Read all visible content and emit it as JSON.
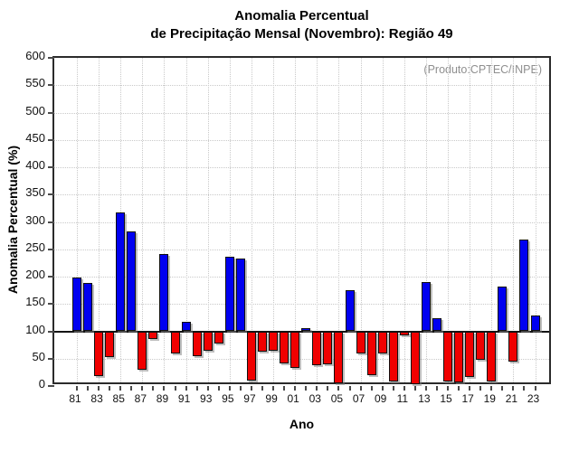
{
  "title": {
    "line1": "Anomalia Percentual",
    "line2": "de Precipitação Mensal (Novembro): Região 49"
  },
  "source_label": "(Produto:CPTEC/INPE)",
  "axes": {
    "x_title": "Ano",
    "y_title": "Anomalia Percentual (%)"
  },
  "chart_data": {
    "type": "bar",
    "title": "Anomalia Percentual de Precipitação Mensal (Novembro): Região 49",
    "xlabel": "Ano",
    "ylabel": "Anomalia Percentual (%)",
    "ylim": [
      0,
      600
    ],
    "ytick_step": 50,
    "baseline_value": 100,
    "grid": "dotted, vertical lines at labeled years, horizontal every 50",
    "legend_position": "none",
    "categories": [
      "81",
      "82",
      "83",
      "84",
      "85",
      "86",
      "87",
      "88",
      "89",
      "90",
      "91",
      "92",
      "93",
      "94",
      "95",
      "96",
      "97",
      "98",
      "99",
      "00",
      "01",
      "02",
      "03",
      "04",
      "05",
      "06",
      "07",
      "08",
      "09",
      "10",
      "11",
      "12",
      "13",
      "14",
      "15",
      "16",
      "17",
      "18",
      "19",
      "20",
      "21",
      "22",
      "23"
    ],
    "values": [
      198,
      189,
      18,
      53,
      318,
      283,
      30,
      86,
      242,
      59,
      118,
      54,
      65,
      78,
      237,
      233,
      10,
      63,
      64,
      41,
      33,
      106,
      38,
      40,
      5,
      176,
      60,
      20,
      59,
      8,
      92,
      3,
      190,
      124,
      8,
      6,
      17,
      48,
      9,
      181,
      44,
      267,
      129
    ],
    "labeled_ticks": [
      "81",
      "83",
      "85",
      "87",
      "89",
      "91",
      "93",
      "95",
      "97",
      "99",
      "01",
      "03",
      "05",
      "07",
      "09",
      "11",
      "13",
      "15",
      "17",
      "19",
      "21",
      "23"
    ],
    "colors": {
      "above_baseline": "#0000f0",
      "below_baseline": "#f00000",
      "baseline_line": "#141414",
      "gridline": "#c9c9c9",
      "frame": "#2b2b2b",
      "source_text": "#8f8f8f"
    }
  }
}
